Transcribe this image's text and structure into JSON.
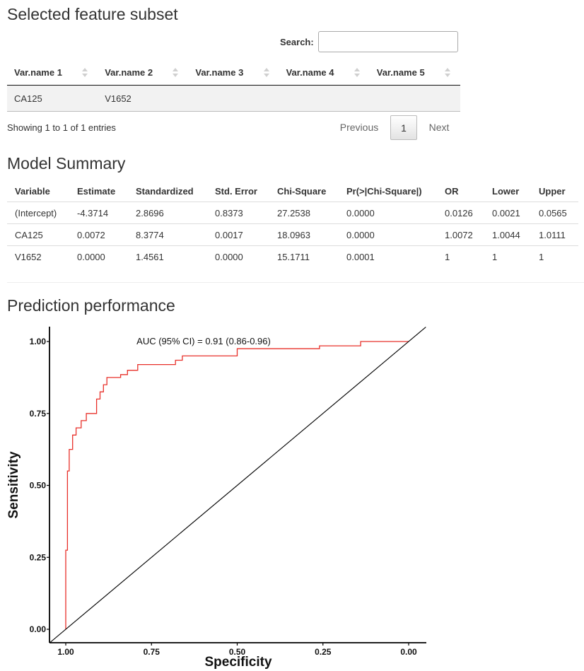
{
  "subset": {
    "title": "Selected feature subset",
    "search_label": "Search:",
    "search_value": "",
    "columns": [
      "Var.name 1",
      "Var.name 2",
      "Var.name 3",
      "Var.name 4",
      "Var.name 5"
    ],
    "rows": [
      [
        "CA125",
        "V1652",
        "",
        "",
        ""
      ]
    ],
    "info": "Showing 1 to 1 of 1 entries",
    "pagination": {
      "previous": "Previous",
      "page": "1",
      "next": "Next"
    }
  },
  "model": {
    "title": "Model Summary",
    "columns": [
      "Variable",
      "Estimate",
      "Standardized",
      "Std. Error",
      "Chi-Square",
      "Pr(>|Chi-Square|)",
      "OR",
      "Lower",
      "Upper"
    ],
    "rows": [
      [
        "(Intercept)",
        "-4.3714",
        "2.8696",
        "0.8373",
        "27.2538",
        "0.0000",
        "0.0126",
        "0.0021",
        "0.0565"
      ],
      [
        "CA125",
        "0.0072",
        "8.3774",
        "0.0017",
        "18.0963",
        "0.0000",
        "1.0072",
        "1.0044",
        "1.0111"
      ],
      [
        "V1652",
        "0.0000",
        "1.4561",
        "0.0000",
        "15.1711",
        "0.0001",
        "1",
        "1",
        "1"
      ]
    ]
  },
  "prediction": {
    "title": "Prediction performance"
  },
  "chart_data": {
    "type": "line",
    "title": "",
    "annotation": "AUC (95% CI) = 0.91 (0.86-0.96)",
    "xlabel": "Specificity",
    "ylabel": "Sensitivity",
    "xlim": [
      1.0,
      0.0
    ],
    "ylim": [
      0.0,
      1.0
    ],
    "x_reversed": true,
    "xticks": [
      "1.00",
      "0.75",
      "0.50",
      "0.25",
      "0.00"
    ],
    "yticks": [
      "0.00",
      "0.25",
      "0.50",
      "0.75",
      "1.00"
    ],
    "series": [
      {
        "name": "ROC",
        "color": "#e8302a",
        "specificity": [
          1.0,
          1.0,
          0.995,
          0.995,
          0.99,
          0.99,
          0.98,
          0.98,
          0.97,
          0.97,
          0.955,
          0.955,
          0.94,
          0.94,
          0.91,
          0.91,
          0.9,
          0.9,
          0.89,
          0.89,
          0.88,
          0.88,
          0.84,
          0.84,
          0.82,
          0.82,
          0.79,
          0.79,
          0.68,
          0.68,
          0.66,
          0.66,
          0.5,
          0.5,
          0.26,
          0.26,
          0.14,
          0.14,
          0.1,
          0.1,
          0.0
        ],
        "sensitivity": [
          0.0,
          0.275,
          0.275,
          0.55,
          0.55,
          0.625,
          0.625,
          0.675,
          0.675,
          0.7,
          0.7,
          0.725,
          0.725,
          0.75,
          0.75,
          0.8,
          0.8,
          0.825,
          0.825,
          0.85,
          0.85,
          0.875,
          0.875,
          0.885,
          0.885,
          0.9,
          0.9,
          0.92,
          0.92,
          0.935,
          0.935,
          0.95,
          0.95,
          0.975,
          0.975,
          0.985,
          0.985,
          1.0,
          1.0,
          1.0,
          1.0
        ]
      },
      {
        "name": "Reference",
        "color": "#000000",
        "specificity": [
          1.05,
          -0.05
        ],
        "sensitivity": [
          -0.05,
          1.05
        ]
      }
    ],
    "legend": "none"
  }
}
